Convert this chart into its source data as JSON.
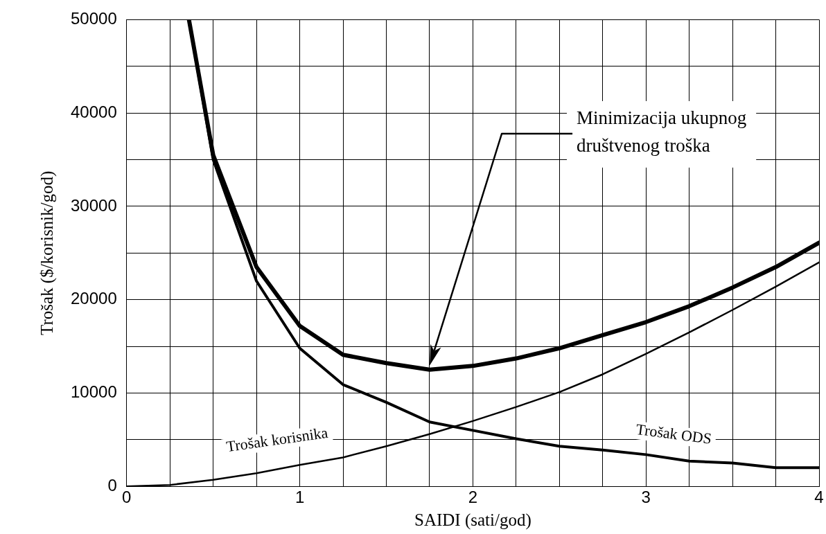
{
  "chart_data": {
    "type": "line",
    "xlabel": "SAIDI (sati/god)",
    "ylabel": "Trošak ($/korisnik/god)",
    "xlim": [
      0,
      4
    ],
    "ylim": [
      0,
      50000
    ],
    "xticks": [
      0,
      {
        "value": 0.25,
        "label": null
      },
      {
        "value": 0.5,
        "label": null
      },
      {
        "value": 0.75,
        "label": null
      },
      1,
      {
        "value": 1.25,
        "label": null
      },
      {
        "value": 1.5,
        "label": null
      },
      {
        "value": 1.75,
        "label": null
      },
      2,
      {
        "value": 2.25,
        "label": null
      },
      {
        "value": 2.5,
        "label": null
      },
      {
        "value": 2.75,
        "label": null
      },
      3,
      {
        "value": 3.25,
        "label": null
      },
      {
        "value": 3.5,
        "label": null
      },
      {
        "value": 3.75,
        "label": null
      },
      4
    ],
    "yticks": [
      0,
      {
        "value": 5000,
        "label": null
      },
      10000,
      {
        "value": 15000,
        "label": null
      },
      20000,
      {
        "value": 25000,
        "label": null
      },
      30000,
      {
        "value": 35000,
        "label": null
      },
      40000,
      {
        "value": 45000,
        "label": null
      },
      50000
    ],
    "grid": true,
    "legend": false,
    "marker": "none",
    "line_style": "solid",
    "series": [
      {
        "color": "#000000",
        "x": [
          0.36,
          0.5,
          0.75,
          1,
          1.25,
          1.5,
          1.75,
          2,
          2.25,
          2.5,
          2.75,
          3,
          3.25,
          3.5,
          3.75,
          4
        ],
        "values": [
          50000,
          35500,
          23500,
          17200,
          14100,
          13200,
          12500,
          12900,
          13700,
          14800,
          16200,
          17600,
          19300,
          21300,
          23500,
          26100
        ]
      },
      {
        "name": "Trošak korisnika",
        "color": "#000000",
        "x": [
          0.36,
          0.5,
          0.75,
          1,
          1.25,
          1.5,
          1.75,
          2,
          2.25,
          2.5,
          2.75,
          3,
          3.25,
          3.5,
          3.75,
          4
        ],
        "values": [
          50000,
          35000,
          22000,
          14800,
          10900,
          9000,
          6900,
          6000,
          5100,
          4300,
          3900,
          3400,
          2700,
          2500,
          2000,
          2000
        ]
      },
      {
        "name": "Trošak ODS",
        "color": "#000000",
        "x": [
          0,
          0.25,
          0.5,
          0.75,
          1,
          1.25,
          1.5,
          1.75,
          2,
          2.25,
          2.5,
          2.75,
          3,
          3.25,
          3.5,
          3.75,
          4
        ],
        "values": [
          0,
          150,
          700,
          1400,
          2300,
          3100,
          4300,
          5600,
          7000,
          8500,
          10100,
          12000,
          14200,
          16500,
          18900,
          21400,
          24000
        ]
      }
    ],
    "annotations": [
      "Minimizacija ukupnog društvenog troška"
    ]
  }
}
